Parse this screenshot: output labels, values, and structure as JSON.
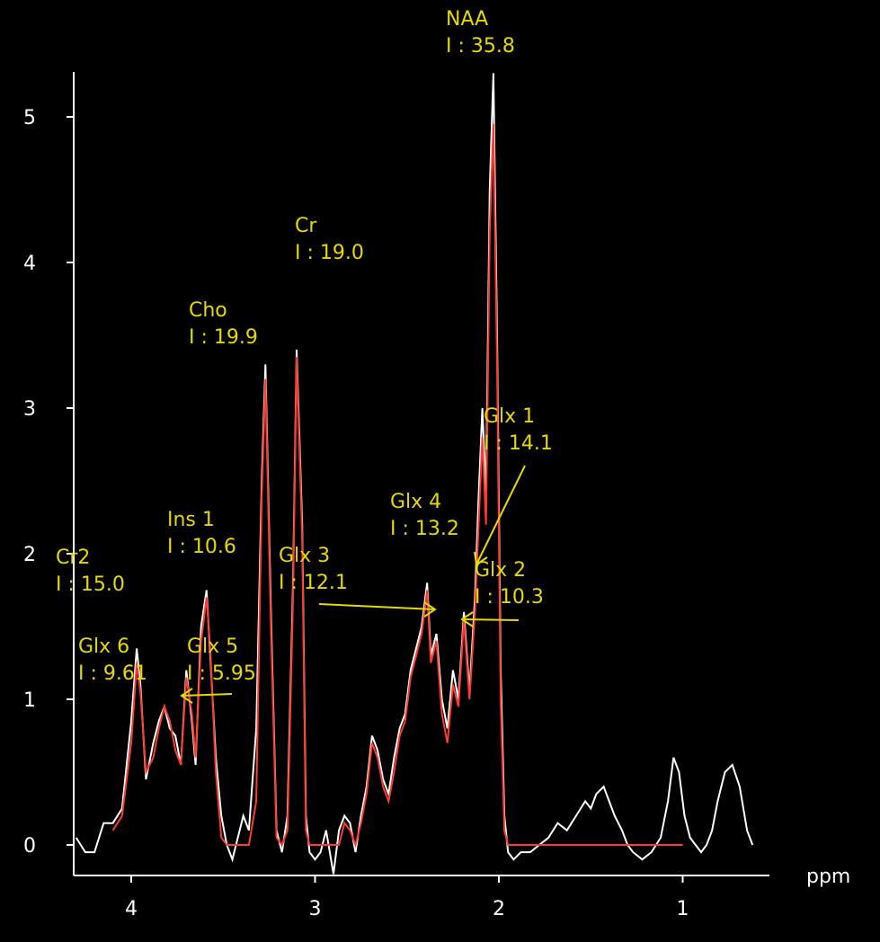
{
  "chart_data": {
    "type": "line",
    "title": "",
    "xlabel": "ppm",
    "ylabel": "",
    "xlim": [
      4.3,
      0.5
    ],
    "ylim": [
      -0.2,
      5.3
    ],
    "x_ticks": [
      "4",
      "3",
      "2",
      "1"
    ],
    "y_ticks": [
      "0",
      "1",
      "2",
      "3",
      "4",
      "5"
    ],
    "colors": {
      "observed": "#ffffff",
      "fit": "#ff3b30",
      "annotation": "#e6d800",
      "axis": "#ffffff"
    },
    "series": [
      {
        "line_color": "#ffffff",
        "x": [
          4.3,
          4.25,
          4.2,
          4.15,
          4.1,
          4.05,
          4.0,
          3.97,
          3.95,
          3.92,
          3.88,
          3.85,
          3.82,
          3.79,
          3.76,
          3.73,
          3.7,
          3.67,
          3.65,
          3.62,
          3.59,
          3.57,
          3.54,
          3.51,
          3.48,
          3.45,
          3.42,
          3.39,
          3.36,
          3.32,
          3.29,
          3.27,
          3.24,
          3.21,
          3.18,
          3.15,
          3.12,
          3.1,
          3.07,
          3.05,
          3.03,
          3.0,
          2.97,
          2.94,
          2.9,
          2.87,
          2.84,
          2.81,
          2.78,
          2.75,
          2.72,
          2.69,
          2.66,
          2.63,
          2.6,
          2.57,
          2.54,
          2.51,
          2.48,
          2.45,
          2.42,
          2.39,
          2.37,
          2.34,
          2.31,
          2.28,
          2.25,
          2.22,
          2.19,
          2.16,
          2.13,
          2.11,
          2.09,
          2.07,
          2.05,
          2.03,
          2.01,
          1.99,
          1.97,
          1.95,
          1.92,
          1.88,
          1.83,
          1.78,
          1.73,
          1.68,
          1.63,
          1.58,
          1.53,
          1.5,
          1.47,
          1.43,
          1.4,
          1.37,
          1.33,
          1.3,
          1.27,
          1.22,
          1.17,
          1.12,
          1.08,
          1.05,
          1.02,
          0.99,
          0.96,
          0.93,
          0.9,
          0.87,
          0.84,
          0.81,
          0.77,
          0.73,
          0.69,
          0.65,
          0.62
        ],
        "y": [
          0.05,
          -0.05,
          -0.05,
          0.15,
          0.15,
          0.25,
          0.85,
          1.35,
          1.1,
          0.45,
          0.7,
          0.85,
          0.95,
          0.8,
          0.75,
          0.55,
          1.2,
          0.85,
          0.55,
          1.5,
          1.75,
          1.3,
          0.6,
          0.2,
          0.0,
          -0.1,
          0.05,
          0.2,
          0.1,
          0.8,
          2.5,
          3.3,
          1.6,
          0.1,
          -0.05,
          0.2,
          1.8,
          3.4,
          2.2,
          0.2,
          -0.05,
          -0.1,
          -0.05,
          0.1,
          -0.2,
          0.1,
          0.2,
          0.15,
          -0.05,
          0.2,
          0.4,
          0.75,
          0.65,
          0.45,
          0.35,
          0.6,
          0.8,
          0.9,
          1.2,
          1.35,
          1.5,
          1.8,
          1.3,
          1.45,
          1.0,
          0.8,
          1.2,
          1.0,
          1.6,
          1.05,
          1.7,
          2.4,
          3.0,
          2.4,
          4.5,
          5.3,
          3.5,
          1.2,
          0.2,
          -0.05,
          -0.1,
          -0.05,
          -0.05,
          0.0,
          0.05,
          0.15,
          0.1,
          0.2,
          0.3,
          0.25,
          0.35,
          0.4,
          0.3,
          0.2,
          0.1,
          0.0,
          -0.05,
          -0.1,
          -0.05,
          0.05,
          0.3,
          0.6,
          0.5,
          0.2,
          0.05,
          0.0,
          -0.05,
          0.0,
          0.1,
          0.3,
          0.5,
          0.55,
          0.4,
          0.1,
          0.0
        ]
      },
      {
        "line_color": "#ff3b30",
        "x": [
          4.1,
          4.05,
          4.0,
          3.97,
          3.95,
          3.92,
          3.88,
          3.85,
          3.82,
          3.79,
          3.76,
          3.73,
          3.7,
          3.67,
          3.65,
          3.62,
          3.59,
          3.57,
          3.54,
          3.51,
          3.48,
          3.45,
          3.42,
          3.39,
          3.36,
          3.32,
          3.29,
          3.27,
          3.24,
          3.21,
          3.18,
          3.15,
          3.12,
          3.1,
          3.07,
          3.05,
          3.03,
          3.0,
          2.97,
          2.94,
          2.9,
          2.87,
          2.84,
          2.81,
          2.78,
          2.75,
          2.72,
          2.69,
          2.66,
          2.63,
          2.6,
          2.57,
          2.54,
          2.51,
          2.48,
          2.45,
          2.42,
          2.39,
          2.37,
          2.34,
          2.31,
          2.28,
          2.25,
          2.22,
          2.19,
          2.16,
          2.13,
          2.11,
          2.09,
          2.07,
          2.05,
          2.03,
          2.01,
          1.99,
          1.97,
          1.95,
          1.92,
          1.88,
          1.8,
          1.6,
          1.4,
          1.2,
          1.0
        ],
        "y": [
          0.1,
          0.2,
          0.7,
          1.25,
          1.05,
          0.5,
          0.6,
          0.8,
          0.95,
          0.85,
          0.65,
          0.55,
          1.15,
          0.9,
          0.6,
          1.4,
          1.7,
          1.35,
          0.5,
          0.05,
          0.0,
          0.0,
          0.0,
          0.0,
          0.0,
          0.3,
          2.4,
          3.2,
          1.5,
          0.05,
          0.0,
          0.1,
          1.7,
          3.35,
          2.1,
          0.1,
          0.0,
          0.0,
          0.0,
          0.0,
          0.0,
          0.0,
          0.15,
          0.1,
          0.0,
          0.15,
          0.35,
          0.7,
          0.6,
          0.4,
          0.3,
          0.5,
          0.75,
          0.85,
          1.15,
          1.3,
          1.45,
          1.75,
          1.25,
          1.4,
          0.9,
          0.7,
          1.1,
          0.95,
          1.55,
          1.0,
          1.6,
          2.2,
          2.8,
          2.2,
          4.2,
          4.95,
          3.3,
          1.0,
          0.1,
          0.0,
          0.0,
          0.0,
          0.0,
          0.0,
          0.0,
          0.0,
          0.0
        ]
      }
    ],
    "annotations": [
      {
        "name": "NAA",
        "integral": "I : 35.8"
      },
      {
        "name": "Cr",
        "integral": "I : 19.0"
      },
      {
        "name": "Cho",
        "integral": "I : 19.9"
      },
      {
        "name": "Glx 1",
        "integral": "I : 14.1"
      },
      {
        "name": "Glx 4",
        "integral": "I : 13.2"
      },
      {
        "name": "Glx 2",
        "integral": "I : 10.3"
      },
      {
        "name": "Glx 3",
        "integral": "I : 12.1"
      },
      {
        "name": "Ins 1",
        "integral": "I : 10.6"
      },
      {
        "name": "Cr2",
        "integral": "I : 15.0"
      },
      {
        "name": "Glx 6",
        "integral": "I : 9.61"
      },
      {
        "name": "Glx 5",
        "integral": "I : 5.95"
      }
    ]
  }
}
